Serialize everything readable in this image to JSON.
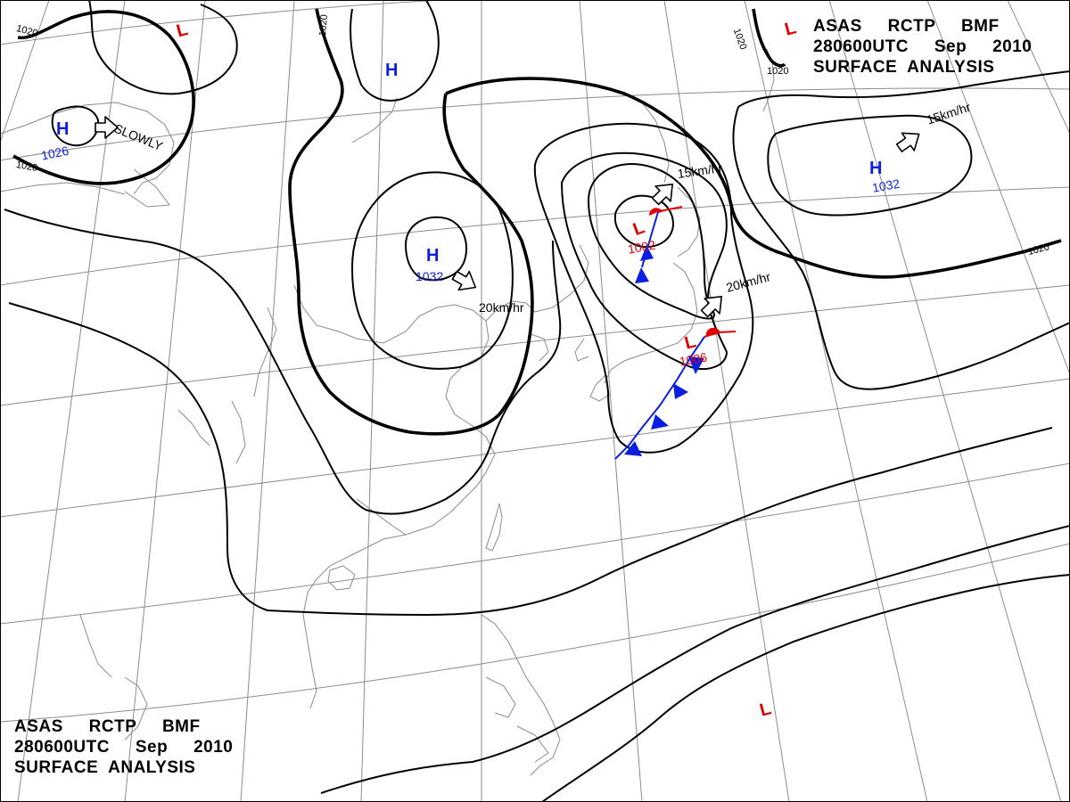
{
  "header": {
    "line1": "ASAS     RCTP     BMF",
    "line2": "280600UTC     Sep     2010",
    "line3": "SURFACE  ANALYSIS"
  },
  "footer": {
    "line1": "ASAS     RCTP     BMF",
    "line2": "280600UTC     Sep     2010",
    "line3": "SURFACE  ANALYSIS"
  },
  "isobar_labels": [
    "1020",
    "1020",
    "1020",
    "1020",
    "1020",
    "1020"
  ],
  "pressure_centers": [
    {
      "name": "high-mongolia",
      "symbol": "H",
      "value": "1032"
    },
    {
      "name": "high-northwest",
      "symbol": "H",
      "value": "1026"
    },
    {
      "name": "high-pacific",
      "symbol": "H",
      "value": "1032"
    },
    {
      "name": "high-siberia",
      "symbol": "H",
      "value": ""
    },
    {
      "name": "low-okhotsk",
      "symbol": "L",
      "value": "1002"
    },
    {
      "name": "low-japan",
      "symbol": "L",
      "value": "1006"
    },
    {
      "name": "low-northwest",
      "symbol": "L",
      "value": ""
    },
    {
      "name": "low-northeast",
      "symbol": "L",
      "value": ""
    },
    {
      "name": "low-south",
      "symbol": "L",
      "value": ""
    }
  ],
  "movements": [
    {
      "name": "movement-slowly",
      "text": "SLOWLY"
    },
    {
      "name": "movement-high-mongolia",
      "text": "20km/hr"
    },
    {
      "name": "movement-low-okhotsk",
      "text": "15km/hr"
    },
    {
      "name": "movement-low-japan",
      "text": "20km/hr"
    },
    {
      "name": "movement-high-pacific",
      "text": "15km/hr"
    }
  ],
  "colors": {
    "high": "#0a1fe0",
    "low": "#e00000",
    "isobar": "#000000",
    "coastline": "#8a8a8a"
  }
}
